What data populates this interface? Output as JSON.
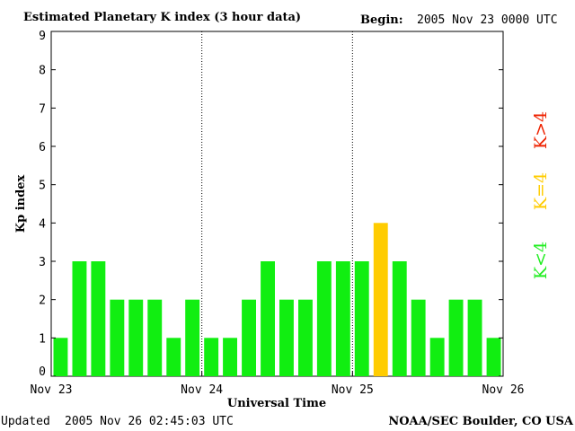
{
  "chart_data": {
    "type": "bar",
    "title": "Estimated Planetary K index (3 hour data)",
    "begin_label": "Begin:",
    "begin_value": "2005 Nov 23 0000 UTC",
    "ylabel": "Kp index",
    "xlabel": "Universal Time",
    "ylim": [
      0,
      9
    ],
    "yticks": [
      "0",
      "1",
      "2",
      "3",
      "4",
      "5",
      "6",
      "7",
      "8",
      "9"
    ],
    "xticks": [
      "Nov 23",
      "Nov 24",
      "Nov 25",
      "Nov 26"
    ],
    "values": [
      1,
      3,
      3,
      2,
      2,
      2,
      1,
      2,
      1,
      1,
      2,
      3,
      2,
      2,
      3,
      3,
      3,
      4,
      3,
      2,
      1,
      2,
      2,
      1
    ],
    "legend": [
      {
        "label": "K<4",
        "color": "#22ee22"
      },
      {
        "label": "K=4",
        "color": "#ffcc00"
      },
      {
        "label": "K>4",
        "color": "#ee2200"
      }
    ],
    "colors": {
      "low": "#11ee11",
      "equal": "#ffcc00",
      "high": "#ee2200"
    }
  },
  "footer": {
    "updated_label": "Updated",
    "updated_value": "2005 Nov 26 02:45:03 UTC",
    "credit": "NOAA/SEC Boulder, CO USA"
  }
}
